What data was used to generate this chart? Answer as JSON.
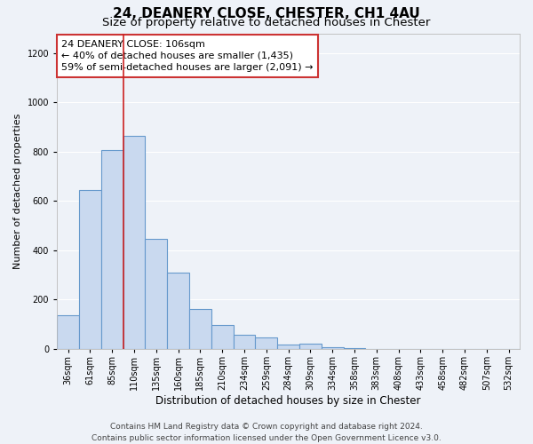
{
  "title": "24, DEANERY CLOSE, CHESTER, CH1 4AU",
  "subtitle": "Size of property relative to detached houses in Chester",
  "xlabel": "Distribution of detached houses by size in Chester",
  "ylabel": "Number of detached properties",
  "bin_labels": [
    "36sqm",
    "61sqm",
    "85sqm",
    "110sqm",
    "135sqm",
    "160sqm",
    "185sqm",
    "210sqm",
    "234sqm",
    "259sqm",
    "284sqm",
    "309sqm",
    "334sqm",
    "358sqm",
    "383sqm",
    "408sqm",
    "433sqm",
    "458sqm",
    "482sqm",
    "507sqm",
    "532sqm"
  ],
  "bar_values": [
    135,
    645,
    805,
    865,
    445,
    310,
    160,
    97,
    55,
    45,
    18,
    20,
    5,
    3,
    0,
    0,
    0,
    0,
    0,
    0,
    0
  ],
  "bar_color": "#c9d9ef",
  "bar_edge_color": "#6699cc",
  "vline_x_index": 3,
  "vline_color": "#cc2222",
  "ylim": [
    0,
    1280
  ],
  "yticks": [
    0,
    200,
    400,
    600,
    800,
    1000,
    1200
  ],
  "ann_line1": "24 DEANERY CLOSE: 106sqm",
  "ann_line2": "← 40% of detached houses are smaller (1,435)",
  "ann_line3": "59% of semi-detached houses are larger (2,091) →",
  "footer_line1": "Contains HM Land Registry data © Crown copyright and database right 2024.",
  "footer_line2": "Contains public sector information licensed under the Open Government Licence v3.0.",
  "background_color": "#eef2f8",
  "grid_color": "#ffffff",
  "title_fontsize": 11,
  "subtitle_fontsize": 9.5,
  "ylabel_fontsize": 8,
  "xlabel_fontsize": 8.5,
  "tick_fontsize": 7,
  "annotation_fontsize": 8,
  "footer_fontsize": 6.5
}
